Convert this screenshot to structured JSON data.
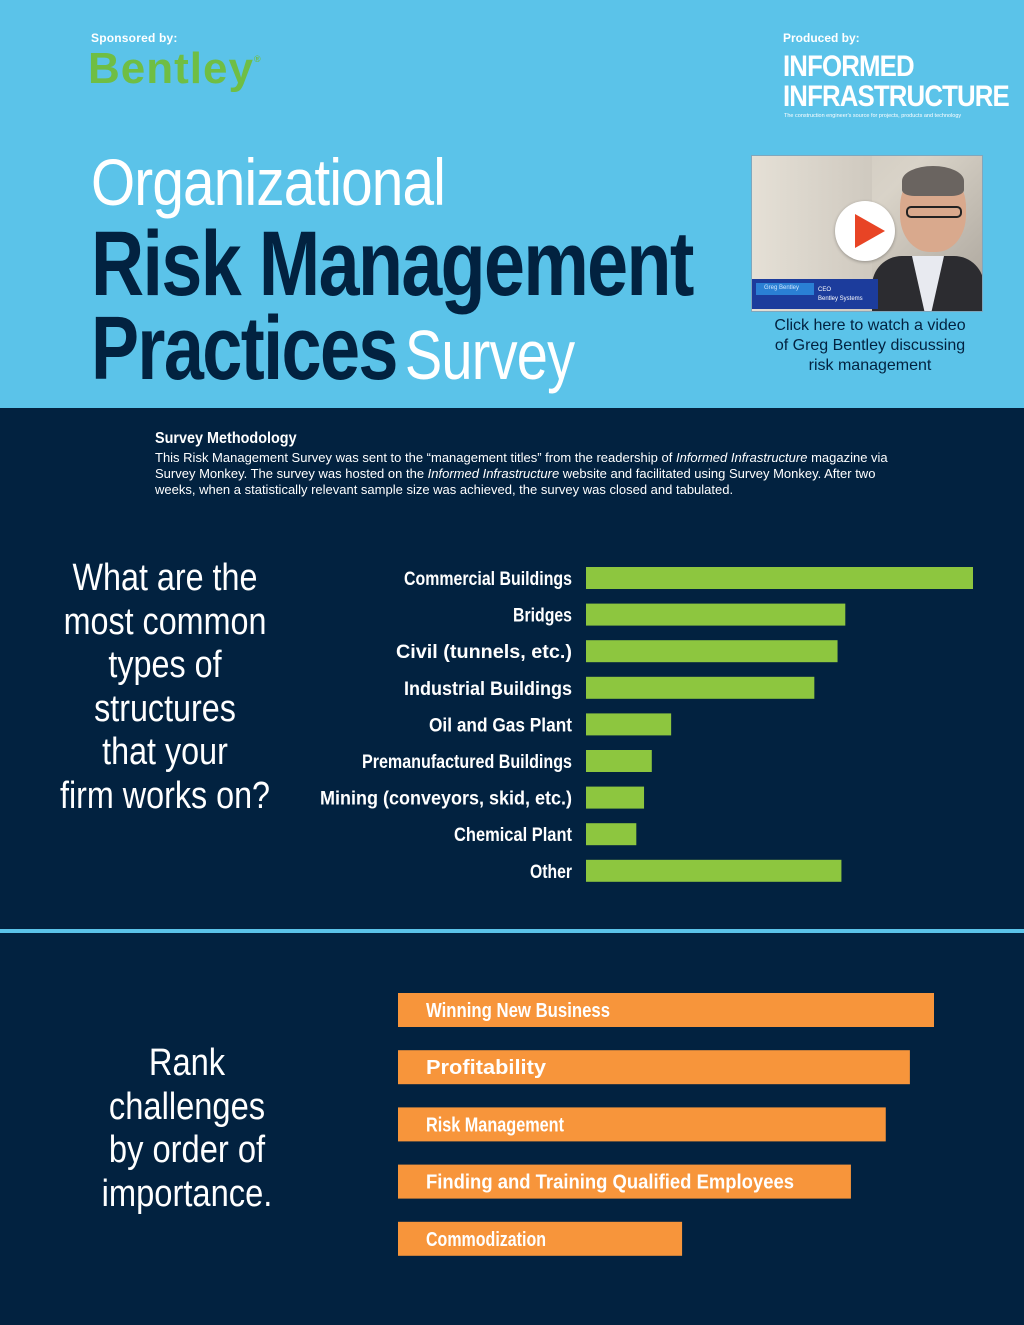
{
  "header": {
    "sponsor_label": "Sponsored by:",
    "sponsor_name": "Bentley",
    "sponsor_mark": "®",
    "producer_label": "Produced by:",
    "producer_line1": "INFORMED",
    "producer_line2": "INFRASTRUCTURE",
    "producer_tagline": "The construction engineer's source for projects, products and technology",
    "title_line1": "Organizational",
    "title_line2": "Risk Management",
    "title_line3_bold": "Practices",
    "title_line3_light": "Survey"
  },
  "video": {
    "icon": "play-icon",
    "lower_third_name": "Greg Bentley",
    "lower_third_title1": "CEO",
    "lower_third_title2": "Bentley Systems",
    "caption_line1": "Click here to watch a video",
    "caption_line2": "of Greg Bentley discussing",
    "caption_line3": "risk management"
  },
  "methodology": {
    "title": "Survey Methodology",
    "text_1": "This Risk Management Survey was sent to the “management titles” from the readership of ",
    "text_em1": "Informed Infrastructure",
    "text_2": " magazine via Survey Monkey. The survey was hosted on the ",
    "text_em2": "Informed Infrastructure",
    "text_3": " website and facilitated using Survey Monkey. After two weeks, when a statistically relevant sample size was achieved, the survey was closed and tabulated."
  },
  "question1": {
    "lines": [
      "What are the",
      "most common",
      "types of",
      "structures",
      "that your",
      "firm works on?"
    ]
  },
  "question2": {
    "lines": [
      "Rank challenges",
      "by order of",
      "importance."
    ]
  },
  "chart_data": [
    {
      "type": "bar",
      "orientation": "horizontal",
      "categories": [
        "Commercial Buildings",
        "Bridges",
        "Civil (tunnels, etc.)",
        "Industrial Buildings",
        "Oil and Gas Plant",
        "Premanufactured Buildings",
        "Mining (conveyors, skid, etc.)",
        "Chemical Plant",
        "Other"
      ],
      "values": [
        100,
        67,
        65,
        59,
        22,
        17,
        15,
        13,
        66
      ],
      "xlim": [
        0,
        100
      ],
      "color": "#8dc63f",
      "grid": false,
      "legend": "none"
    },
    {
      "type": "bar",
      "orientation": "horizontal",
      "categories": [
        "Winning New Business",
        "Profitability",
        "Risk Management",
        "Finding and Training Qualified Employees",
        "Commodization"
      ],
      "values": [
        100,
        95.5,
        91,
        84.5,
        53
      ],
      "xlim": [
        0,
        100
      ],
      "color": "#f7953b",
      "labels_inside": true,
      "grid": false,
      "legend": "none"
    }
  ]
}
